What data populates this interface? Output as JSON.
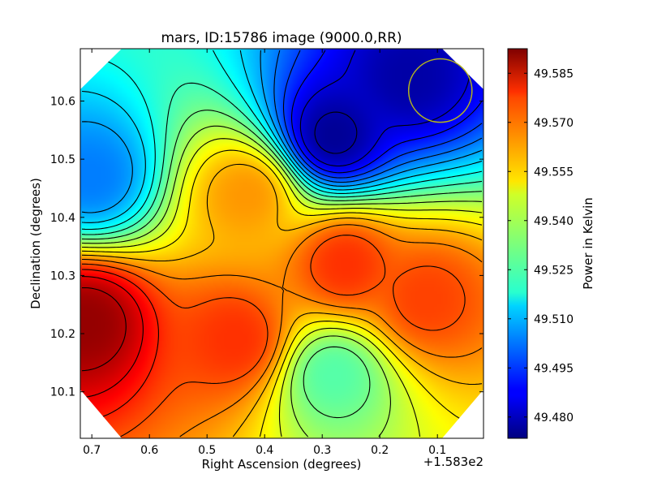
{
  "chart_data": {
    "type": "heatmap",
    "title": "mars, ID:15786 image (9000.0,RR)",
    "xlabel": "Right Ascension (degrees)",
    "ylabel": "Declination (degrees)",
    "x_offset_label": "+1.583e2",
    "colorbar_label": "Power in Kelvin",
    "xlim": [
      0.72,
      0.02
    ],
    "ylim": [
      10.02,
      10.69
    ],
    "x_ticks": [
      {
        "value": 0.7,
        "label": "0.7"
      },
      {
        "value": 0.6,
        "label": "0.6"
      },
      {
        "value": 0.5,
        "label": "0.5"
      },
      {
        "value": 0.4,
        "label": "0.4"
      },
      {
        "value": 0.3,
        "label": "0.3"
      },
      {
        "value": 0.2,
        "label": "0.2"
      },
      {
        "value": 0.1,
        "label": "0.1"
      }
    ],
    "y_ticks": [
      {
        "value": 10.1,
        "label": "10.1"
      },
      {
        "value": 10.2,
        "label": "10.2"
      },
      {
        "value": 10.3,
        "label": "10.3"
      },
      {
        "value": 10.4,
        "label": "10.4"
      },
      {
        "value": 10.5,
        "label": "10.5"
      },
      {
        "value": 10.6,
        "label": "10.6"
      }
    ],
    "colorbar_range": [
      49.4735,
      49.5925
    ],
    "colorbar_ticks": [
      {
        "value": 49.48,
        "label": "49.480"
      },
      {
        "value": 49.495,
        "label": "49.495"
      },
      {
        "value": 49.51,
        "label": "49.510"
      },
      {
        "value": 49.525,
        "label": "49.525"
      },
      {
        "value": 49.54,
        "label": "49.540"
      },
      {
        "value": 49.555,
        "label": "49.555"
      },
      {
        "value": 49.57,
        "label": "49.570"
      },
      {
        "value": 49.585,
        "label": "49.585"
      }
    ],
    "colormap": "jet",
    "contour_color": "#000000",
    "beam_circle": {
      "ra": 0.095,
      "dec": 10.618,
      "radius_deg": 0.055,
      "color": "#b4b41e"
    },
    "features": [
      {
        "kind": "max",
        "ra": 0.71,
        "dec": 10.22,
        "value": 49.59
      },
      {
        "kind": "max",
        "ra": 0.45,
        "dec": 10.19,
        "value": 49.572
      },
      {
        "kind": "max",
        "ra": 0.26,
        "dec": 10.32,
        "value": 49.572
      },
      {
        "kind": "max",
        "ra": 0.12,
        "dec": 10.26,
        "value": 49.57
      },
      {
        "kind": "max",
        "ra": 0.43,
        "dec": 10.44,
        "value": 49.56
      },
      {
        "kind": "min",
        "ra": 0.28,
        "dec": 10.54,
        "value": 49.476
      },
      {
        "kind": "min",
        "ra": 0.15,
        "dec": 10.64,
        "value": 49.478
      },
      {
        "kind": "min",
        "ra": 0.7,
        "dec": 10.47,
        "value": 49.503
      },
      {
        "kind": "min",
        "ra": 0.28,
        "dec": 10.13,
        "value": 49.528
      }
    ]
  }
}
